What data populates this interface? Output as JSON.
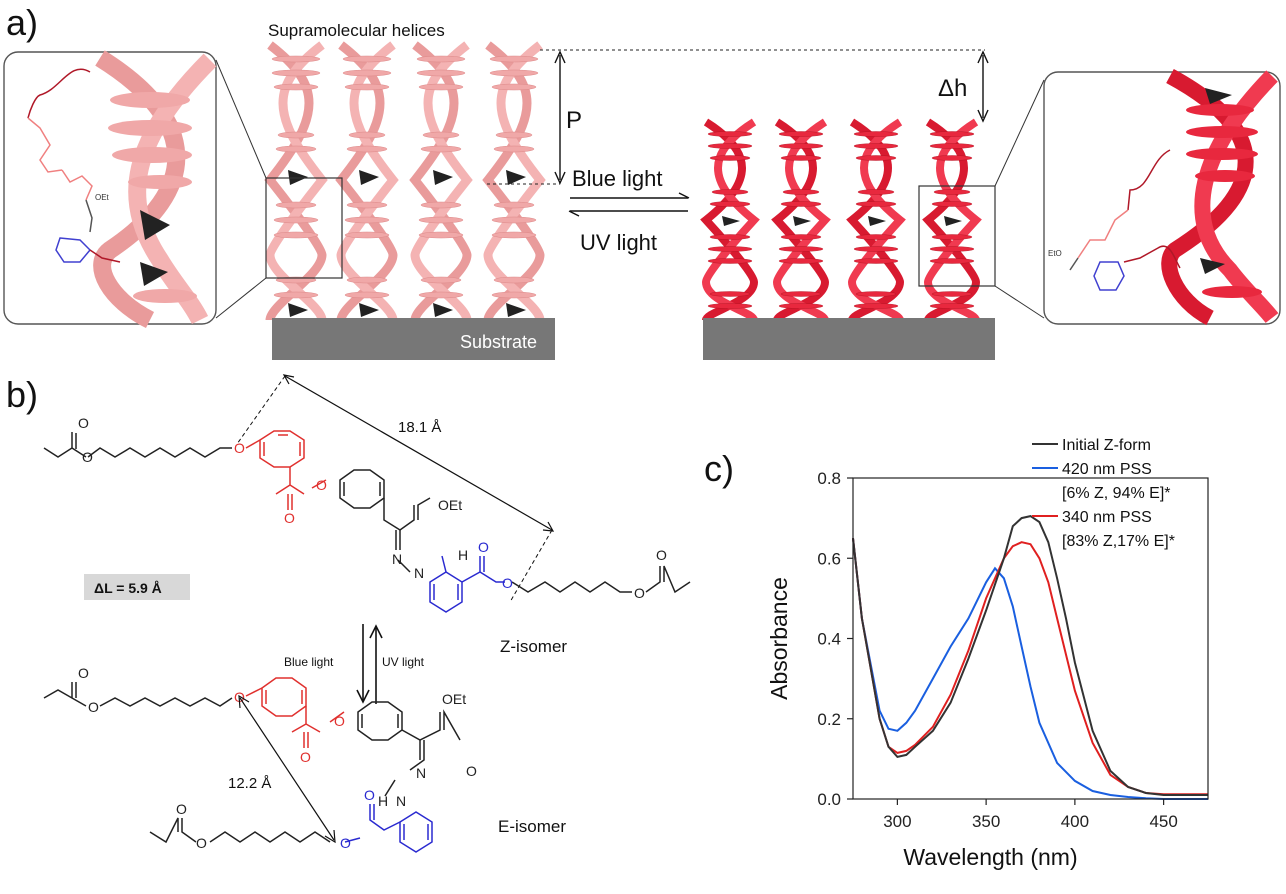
{
  "panel_a": {
    "label": "a)",
    "helices_title": "Supramolecular helices",
    "pitch_label": "P",
    "delta_h_label": "Δh",
    "blue_light": "Blue light",
    "uv_light": "UV light",
    "substrate_label": "Substrate",
    "zoom_left": {
      "oet": "OEt"
    },
    "zoom_right": {
      "eto": "EtO"
    },
    "colors": {
      "z_helix": "#f0a0a0",
      "e_helix": "#e8203a",
      "substrate": "#777777"
    }
  },
  "panel_b": {
    "label": "b)",
    "delta_l": "ΔL = 5.9 Å",
    "distance_z": "18.1 Å",
    "distance_e": "12.2 Å",
    "z_isomer": "Z-isomer",
    "e_isomer": "E-isomer",
    "blue_light": "Blue light",
    "uv_light": "UV light",
    "oet": "OEt",
    "atoms": {
      "o": "O",
      "n": "N",
      "h": "H"
    },
    "colors": {
      "red_fragment": "#e0302e",
      "blue_fragment": "#2a2ad0",
      "black": "#222222"
    }
  },
  "panel_c": {
    "label": "c)"
  },
  "chart_data": {
    "type": "line",
    "title": "",
    "xlabel": "Wavelength (nm)",
    "ylabel": "Absorbance",
    "xlim": [
      275,
      475
    ],
    "ylim": [
      0,
      0.8
    ],
    "xticks": [
      "300",
      "350",
      "400",
      "450"
    ],
    "yticks": [
      "0.0",
      "0.2",
      "0.4",
      "0.6",
      "0.8"
    ],
    "legend_position": "top-right",
    "legend": [
      {
        "lines": [
          "Initial Z-form"
        ],
        "color": "#333333"
      },
      {
        "lines": [
          "420 nm PSS",
          "[6% Z, 94% E]*"
        ],
        "color": "#1a5fe0"
      },
      {
        "lines": [
          "340 nm PSS",
          "[83% Z,17% E]*"
        ],
        "color": "#e02020"
      }
    ],
    "series": [
      {
        "color": "#333333",
        "x": [
          275,
          280,
          290,
          295,
          300,
          305,
          310,
          320,
          330,
          340,
          350,
          360,
          365,
          370,
          375,
          380,
          385,
          390,
          395,
          400,
          410,
          420,
          430,
          440,
          450,
          460,
          475
        ],
        "y": [
          0.65,
          0.45,
          0.2,
          0.13,
          0.105,
          0.11,
          0.13,
          0.17,
          0.24,
          0.35,
          0.47,
          0.6,
          0.68,
          0.7,
          0.705,
          0.69,
          0.64,
          0.55,
          0.45,
          0.34,
          0.17,
          0.07,
          0.03,
          0.015,
          0.01,
          0.01,
          0.01
        ]
      },
      {
        "color": "#1a5fe0",
        "x": [
          275,
          280,
          290,
          295,
          300,
          305,
          310,
          320,
          330,
          340,
          350,
          355,
          360,
          365,
          370,
          375,
          380,
          390,
          400,
          410,
          420,
          430,
          440,
          450,
          460,
          475
        ],
        "y": [
          0.65,
          0.45,
          0.22,
          0.175,
          0.17,
          0.19,
          0.22,
          0.3,
          0.38,
          0.45,
          0.54,
          0.575,
          0.55,
          0.48,
          0.38,
          0.28,
          0.19,
          0.09,
          0.045,
          0.02,
          0.01,
          0.005,
          0.002,
          0.0,
          0.0,
          0.0
        ]
      },
      {
        "color": "#e02020",
        "x": [
          275,
          280,
          290,
          295,
          300,
          305,
          310,
          320,
          330,
          340,
          350,
          360,
          365,
          370,
          375,
          380,
          385,
          390,
          395,
          400,
          410,
          420,
          430,
          440,
          450,
          460,
          475
        ],
        "y": [
          0.65,
          0.45,
          0.2,
          0.13,
          0.115,
          0.12,
          0.135,
          0.18,
          0.26,
          0.37,
          0.5,
          0.6,
          0.63,
          0.64,
          0.635,
          0.6,
          0.54,
          0.45,
          0.36,
          0.27,
          0.14,
          0.06,
          0.03,
          0.015,
          0.012,
          0.012,
          0.012
        ]
      }
    ]
  }
}
